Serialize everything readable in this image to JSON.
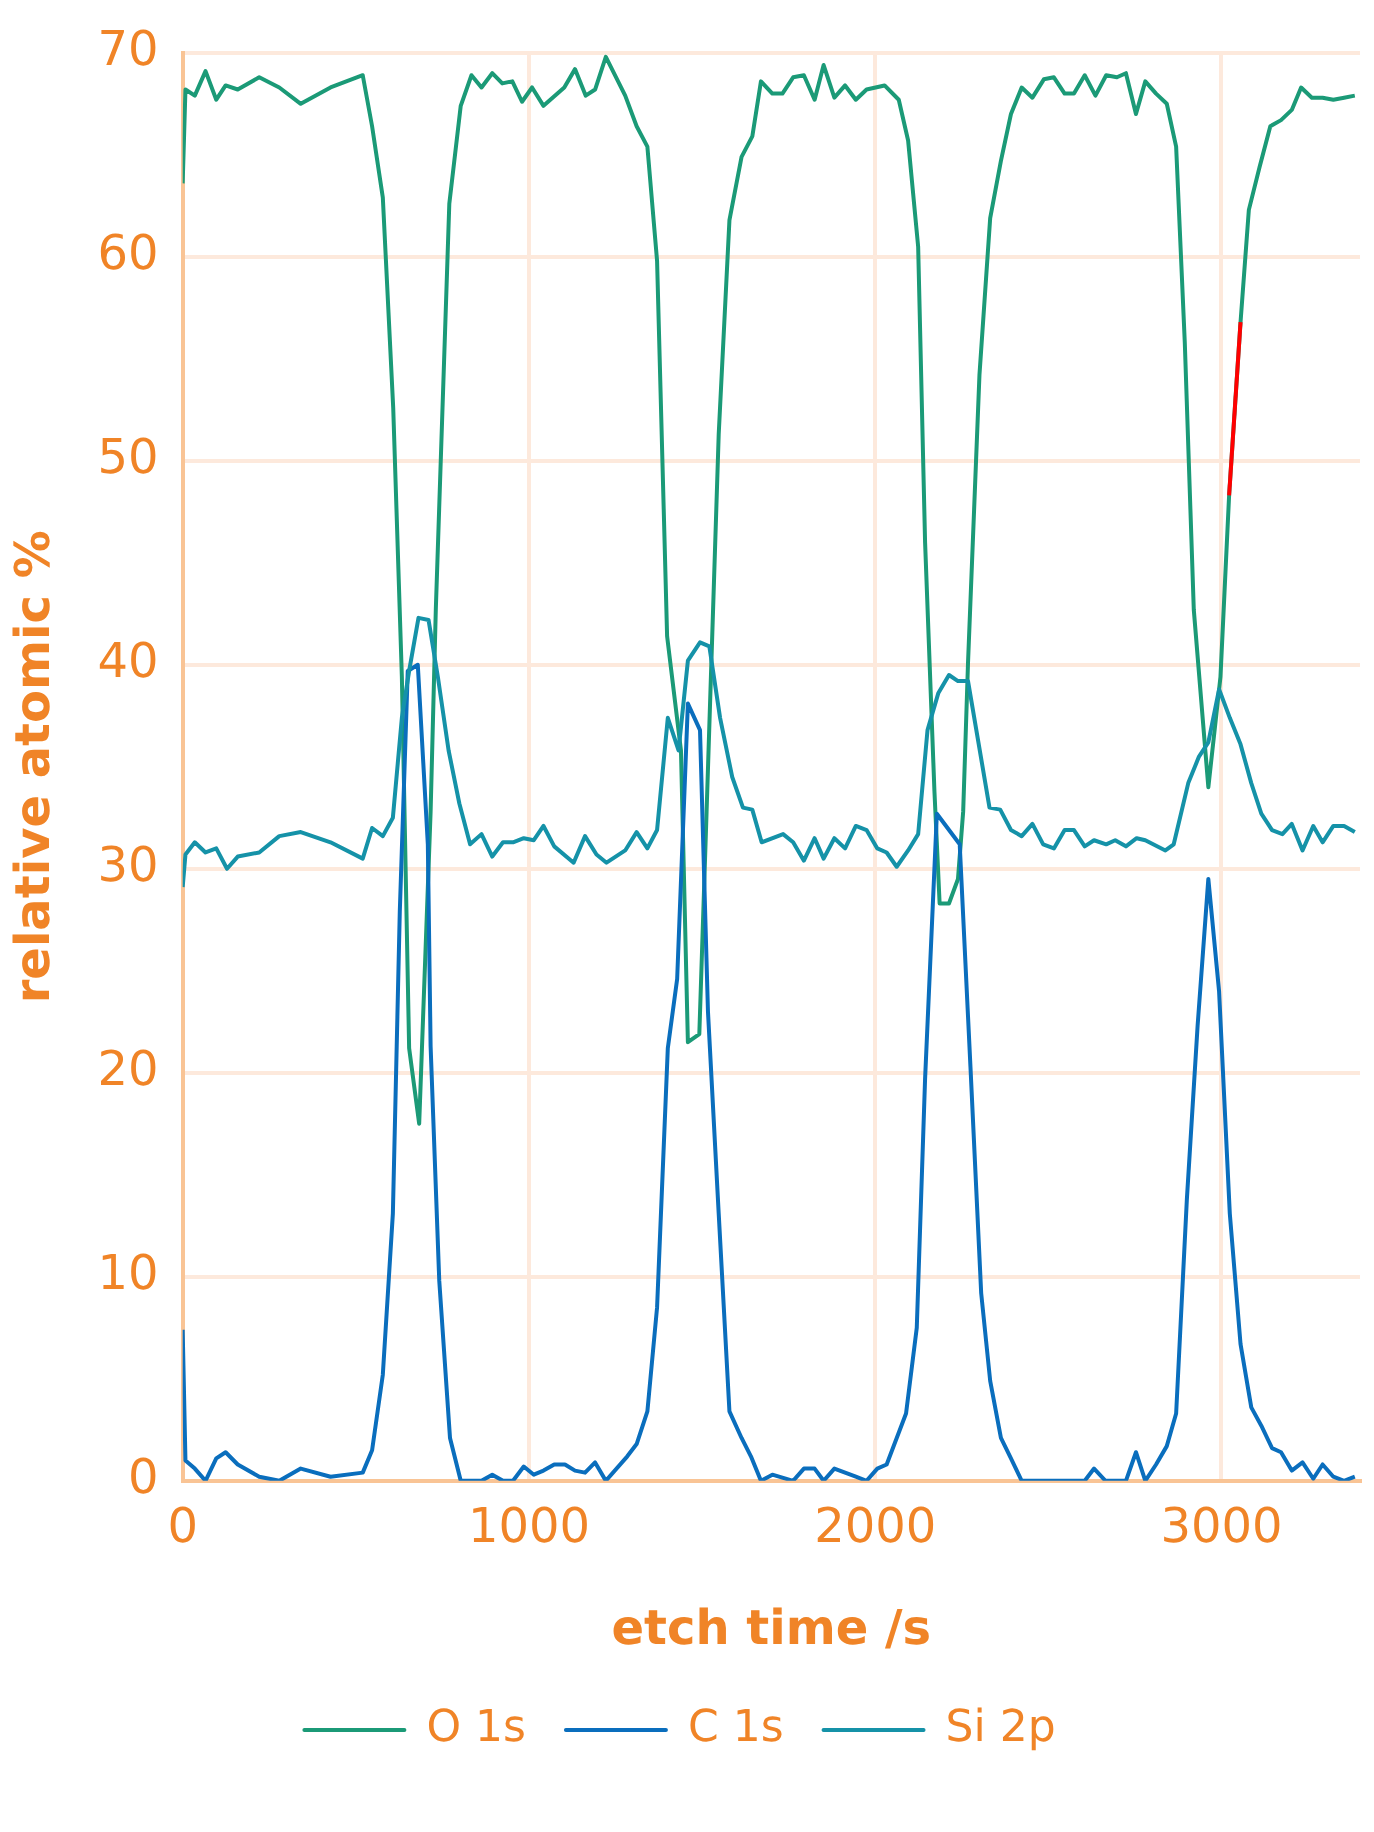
{
  "chart_data": {
    "type": "line",
    "xlabel": "etch time /s",
    "ylabel": "relative atomic %",
    "xlim": [
      0,
      3400
    ],
    "xticks": [
      0,
      1000,
      2000,
      3000
    ],
    "ylim": [
      0,
      70
    ],
    "yticks": [
      0,
      10,
      20,
      30,
      40,
      50,
      60,
      70
    ],
    "grid": true,
    "legend": "bottom",
    "series": [
      {
        "name": "O 1s",
        "color": "#1b9a77",
        "x": [
          0,
          8,
          35,
          66,
          97,
          124,
          159,
          221,
          279,
          341,
          427,
          520,
          547,
          578,
          608,
          633,
          654,
          683,
          716,
          731,
          770,
          803,
          834,
          863,
          894,
          923,
          952,
          980,
          1009,
          1042,
          1102,
          1133,
          1164,
          1191,
          1222,
          1278,
          1311,
          1342,
          1370,
          1399,
          1439,
          1459,
          1492,
          1513,
          1548,
          1579,
          1614,
          1645,
          1670,
          1703,
          1732,
          1763,
          1794,
          1825,
          1851,
          1882,
          1913,
          1944,
          1975,
          2027,
          2068,
          2095,
          2124,
          2144,
          2171,
          2186,
          2213,
          2239,
          2254,
          2268,
          2301,
          2332,
          2363,
          2392,
          2423,
          2454,
          2487,
          2516,
          2547,
          2574,
          2605,
          2636,
          2667,
          2698,
          2724,
          2753,
          2780,
          2811,
          2842,
          2869,
          2894,
          2920,
          2962,
          2997,
          3022,
          3055,
          3079,
          3110,
          3141,
          3172,
          3203,
          3230,
          3261,
          3292,
          3323,
          3354,
          3385
        ],
        "values": [
          63.6,
          68.2,
          67.9,
          69.1,
          67.7,
          68.4,
          68.2,
          68.8,
          68.3,
          67.5,
          68.3,
          68.9,
          66.4,
          62.9,
          52.6,
          39.4,
          21.2,
          17.5,
          32.8,
          42.7,
          62.6,
          67.4,
          68.9,
          68.3,
          69.0,
          68.5,
          68.6,
          67.6,
          68.3,
          67.4,
          68.3,
          69.2,
          67.9,
          68.2,
          69.8,
          67.9,
          66.4,
          65.4,
          59.8,
          41.4,
          35.8,
          21.5,
          21.9,
          32.8,
          51.3,
          61.8,
          64.9,
          65.9,
          68.6,
          68.0,
          68.0,
          68.8,
          68.9,
          67.7,
          69.4,
          67.8,
          68.4,
          67.7,
          68.2,
          68.4,
          67.7,
          65.7,
          60.5,
          46.0,
          33.8,
          28.3,
          28.3,
          29.5,
          32.8,
          40.1,
          54.2,
          61.9,
          64.7,
          67.0,
          68.3,
          67.8,
          68.7,
          68.8,
          68.0,
          68.0,
          68.9,
          67.9,
          68.9,
          68.8,
          69.0,
          67.0,
          68.6,
          68.0,
          67.5,
          65.4,
          55.8,
          42.7,
          34.0,
          39.4,
          48.3,
          56.8,
          62.3,
          64.4,
          66.4,
          66.7,
          67.2,
          68.3,
          67.8,
          67.8,
          67.7,
          67.8,
          67.9
        ]
      },
      {
        "name": "C 1s",
        "color": "#0a6ebd",
        "x": [
          0,
          8,
          35,
          66,
          97,
          124,
          159,
          221,
          279,
          341,
          427,
          520,
          547,
          578,
          607,
          627,
          650,
          679,
          708,
          716,
          741,
          772,
          803,
          863,
          894,
          925,
          954,
          985,
          1014,
          1042,
          1073,
          1104,
          1133,
          1162,
          1191,
          1222,
          1284,
          1311,
          1342,
          1370,
          1401,
          1428,
          1459,
          1494,
          1517,
          1548,
          1579,
          1614,
          1641,
          1670,
          1703,
          1763,
          1794,
          1825,
          1851,
          1882,
          1944,
          1975,
          2006,
          2033,
          2089,
          2120,
          2144,
          2178,
          2244,
          2275,
          2306,
          2332,
          2363,
          2392,
          2423,
          2516,
          2605,
          2632,
          2665,
          2724,
          2753,
          2780,
          2811,
          2842,
          2869,
          2900,
          2931,
          2962,
          2993,
          3024,
          3055,
          3086,
          3115,
          3146,
          3172,
          3203,
          3234,
          3265,
          3292,
          3323,
          3354,
          3385
        ],
        "values": [
          7.4,
          1.0,
          0.6,
          0,
          1.1,
          1.4,
          0.8,
          0.2,
          0,
          0.6,
          0.2,
          0.4,
          1.5,
          5.2,
          13.1,
          27.9,
          39.7,
          40.0,
          31.2,
          21.3,
          9.8,
          2.1,
          0,
          0,
          0.3,
          0,
          0,
          0.7,
          0.3,
          0.5,
          0.8,
          0.8,
          0.5,
          0.4,
          0.9,
          0,
          1.2,
          1.8,
          3.4,
          8.5,
          21.2,
          24.6,
          38.1,
          36.8,
          23.0,
          13.1,
          3.4,
          2.1,
          1.2,
          0,
          0.3,
          0,
          0.6,
          0.6,
          0,
          0.6,
          0.2,
          0,
          0.6,
          0.8,
          3.3,
          7.5,
          19.7,
          32.7,
          31.2,
          20.3,
          9.2,
          4.9,
          2.1,
          1.1,
          0,
          0,
          0,
          0.6,
          0,
          0,
          1.4,
          0,
          0.8,
          1.7,
          3.3,
          13.8,
          22.3,
          29.5,
          24.0,
          13.1,
          6.7,
          3.6,
          2.7,
          1.6,
          1.4,
          0.5,
          0.9,
          0.1,
          0.8,
          0.2,
          0,
          0.2
        ]
      },
      {
        "name": "Si 2p",
        "color": "#1592a8",
        "x": [
          0,
          8,
          35,
          66,
          97,
          128,
          159,
          221,
          279,
          341,
          427,
          520,
          547,
          578,
          607,
          633,
          654,
          681,
          710,
          737,
          768,
          799,
          830,
          863,
          894,
          925,
          954,
          985,
          1014,
          1042,
          1073,
          1129,
          1162,
          1195,
          1224,
          1278,
          1311,
          1342,
          1370,
          1401,
          1432,
          1459,
          1494,
          1521,
          1552,
          1587,
          1618,
          1645,
          1672,
          1734,
          1763,
          1794,
          1825,
          1851,
          1882,
          1913,
          1944,
          1975,
          2006,
          2033,
          2062,
          2095,
          2124,
          2151,
          2182,
          2213,
          2239,
          2268,
          2299,
          2330,
          2361,
          2392,
          2423,
          2454,
          2485,
          2516,
          2547,
          2574,
          2605,
          2632,
          2667,
          2693,
          2724,
          2755,
          2780,
          2838,
          2862,
          2904,
          2935,
          2962,
          2993,
          3024,
          3055,
          3086,
          3115,
          3146,
          3176,
          3203,
          3234,
          3265,
          3292,
          3323,
          3354,
          3385
        ],
        "values": [
          29.1,
          30.7,
          31.3,
          30.8,
          31.0,
          30.0,
          30.6,
          30.8,
          31.6,
          31.8,
          31.3,
          30.5,
          32.0,
          31.6,
          32.5,
          37.4,
          39.7,
          42.3,
          42.2,
          39.4,
          35.8,
          33.2,
          31.2,
          31.7,
          30.6,
          31.3,
          31.3,
          31.5,
          31.4,
          32.1,
          31.1,
          30.3,
          31.6,
          30.7,
          30.3,
          30.9,
          31.8,
          31.0,
          31.9,
          37.4,
          35.8,
          40.2,
          41.1,
          40.9,
          37.4,
          34.5,
          33.0,
          32.9,
          31.3,
          31.7,
          31.3,
          30.4,
          31.5,
          30.5,
          31.5,
          31.0,
          32.1,
          31.9,
          31.0,
          30.8,
          30.1,
          30.9,
          31.7,
          36.8,
          38.6,
          39.5,
          39.2,
          39.2,
          36.1,
          33.0,
          32.9,
          31.9,
          31.6,
          32.2,
          31.2,
          31.0,
          31.9,
          31.9,
          31.1,
          31.4,
          31.2,
          31.4,
          31.1,
          31.5,
          31.4,
          30.9,
          31.2,
          34.2,
          35.5,
          36.2,
          38.8,
          37.4,
          36.1,
          34.2,
          32.7,
          31.9,
          31.7,
          32.2,
          30.9,
          32.1,
          31.3,
          32.1,
          32.1,
          31.8
        ]
      },
      {
        "color": "#ff0000",
        "x": [
          3022,
          3055
        ],
        "values": [
          48.3,
          56.8
        ]
      }
    ]
  }
}
